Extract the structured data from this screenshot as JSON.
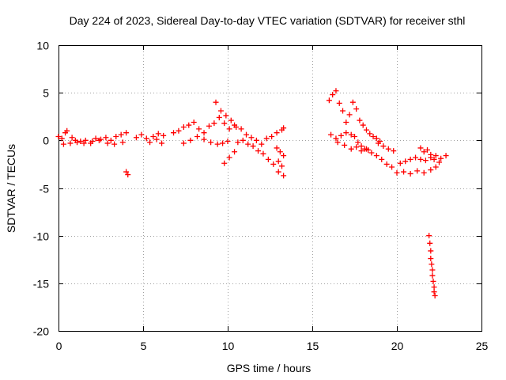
{
  "chart_data": {
    "type": "scatter",
    "title": "Day 224 of 2023, Sidereal Day-to-day VTEC variation (SDTVAR) for receiver sthl",
    "xlabel": "GPS time / hours",
    "ylabel": "SDTVAR / TECUs",
    "xlim": [
      0,
      25
    ],
    "ylim": [
      -20,
      10
    ],
    "xticks": [
      0,
      5,
      10,
      15,
      20,
      25
    ],
    "yticks": [
      -20,
      -15,
      -10,
      -5,
      0,
      5,
      10
    ],
    "grid": true,
    "marker": "+",
    "series": [
      {
        "name": "sthl",
        "color": "#ff0000",
        "x": [
          0.0,
          0.2,
          0.4,
          0.5,
          0.8,
          1.0,
          1.3,
          1.6,
          1.9,
          2.2,
          2.5,
          2.8,
          3.1,
          3.4,
          3.7,
          4.0,
          0.3,
          0.7,
          1.1,
          1.5,
          2.0,
          2.4,
          2.9,
          3.3,
          3.8,
          4.0,
          4.1,
          4.6,
          4.9,
          5.2,
          5.6,
          5.9,
          6.2,
          5.4,
          5.8,
          6.1,
          6.8,
          7.1,
          7.4,
          7.7,
          8.0,
          8.3,
          8.6,
          8.9,
          9.2,
          9.5,
          9.8,
          10.1,
          10.4,
          7.4,
          7.8,
          8.2,
          8.6,
          9.0,
          9.4,
          9.7,
          10.0,
          9.3,
          9.6,
          9.9,
          10.2,
          10.5,
          10.8,
          11.1,
          11.4,
          11.7,
          12.0,
          9.8,
          10.1,
          10.4,
          10.6,
          10.9,
          11.2,
          11.5,
          11.8,
          12.1,
          12.4,
          12.7,
          13.0,
          13.3,
          12.3,
          12.6,
          12.9,
          13.2,
          13.3,
          12.9,
          13.1,
          13.3,
          13.0,
          13.2,
          16.0,
          16.2,
          16.4,
          16.6,
          16.8,
          17.0,
          17.2,
          17.4,
          17.6,
          17.8,
          18.0,
          18.2,
          18.4,
          18.6,
          18.8,
          19.0,
          16.4,
          16.7,
          17.0,
          17.3,
          17.5,
          17.7,
          17.9,
          18.1,
          18.3,
          16.1,
          16.5,
          16.9,
          17.3,
          17.6,
          17.9,
          18.2,
          18.5,
          18.8,
          19.1,
          19.4,
          19.7,
          18.9,
          19.2,
          19.5,
          19.8,
          20.2,
          20.5,
          20.8,
          21.1,
          21.4,
          21.7,
          22.0,
          22.3,
          22.6,
          22.9,
          20.0,
          20.4,
          20.8,
          21.2,
          21.6,
          22.0,
          22.3,
          21.4,
          21.6,
          21.8,
          22.0,
          22.2,
          22.5,
          21.9,
          21.95,
          22.0,
          22.0,
          22.05,
          22.1,
          22.1,
          22.15,
          22.2,
          22.2,
          22.25
        ],
        "y": [
          0.4,
          0.2,
          0.8,
          1.0,
          0.3,
          0.0,
          -0.1,
          0.0,
          -0.3,
          0.2,
          0.1,
          0.3,
          0.0,
          0.4,
          0.6,
          0.8,
          -0.4,
          -0.3,
          -0.2,
          -0.3,
          -0.1,
          0.0,
          -0.3,
          -0.4,
          -0.2,
          -3.3,
          -3.6,
          0.3,
          0.6,
          0.2,
          0.4,
          0.7,
          0.5,
          -0.2,
          0.1,
          -0.3,
          0.8,
          1.0,
          1.4,
          1.6,
          1.9,
          1.2,
          0.8,
          1.5,
          1.8,
          2.4,
          1.8,
          1.2,
          1.6,
          -0.3,
          0.0,
          0.4,
          0.1,
          -0.2,
          -0.4,
          -0.3,
          -0.1,
          4.0,
          3.1,
          2.6,
          2.1,
          1.4,
          1.2,
          0.6,
          0.3,
          0.0,
          -0.4,
          -2.4,
          -1.8,
          -1.2,
          -0.2,
          0.0,
          -0.4,
          -0.6,
          -1.1,
          -1.4,
          -2.0,
          -2.5,
          -3.3,
          -3.7,
          0.2,
          0.4,
          0.8,
          1.1,
          1.3,
          -0.8,
          -1.2,
          -1.6,
          -2.2,
          -2.7,
          4.2,
          4.8,
          5.2,
          3.9,
          3.1,
          1.9,
          2.7,
          4.0,
          3.3,
          2.1,
          1.6,
          1.1,
          0.7,
          0.4,
          0.2,
          -0.1,
          0.2,
          0.5,
          0.8,
          0.6,
          0.4,
          -0.2,
          -0.6,
          -0.9,
          -1.0,
          0.6,
          -0.2,
          -0.5,
          -0.9,
          -0.7,
          -1.1,
          -0.9,
          -1.3,
          -1.6,
          -2.0,
          -2.5,
          -2.8,
          -0.3,
          -0.6,
          -0.9,
          -1.1,
          -2.4,
          -2.2,
          -2.0,
          -1.8,
          -2.0,
          -2.1,
          -1.8,
          -1.6,
          -1.9,
          -1.6,
          -3.4,
          -3.3,
          -3.5,
          -3.2,
          -3.4,
          -3.1,
          -2.8,
          -0.8,
          -1.2,
          -1.0,
          -1.5,
          -2.0,
          -2.3,
          -10.0,
          -10.8,
          -11.6,
          -12.4,
          -13.0,
          -13.6,
          -14.2,
          -14.8,
          -15.4,
          -15.9,
          -16.3
        ]
      }
    ]
  }
}
